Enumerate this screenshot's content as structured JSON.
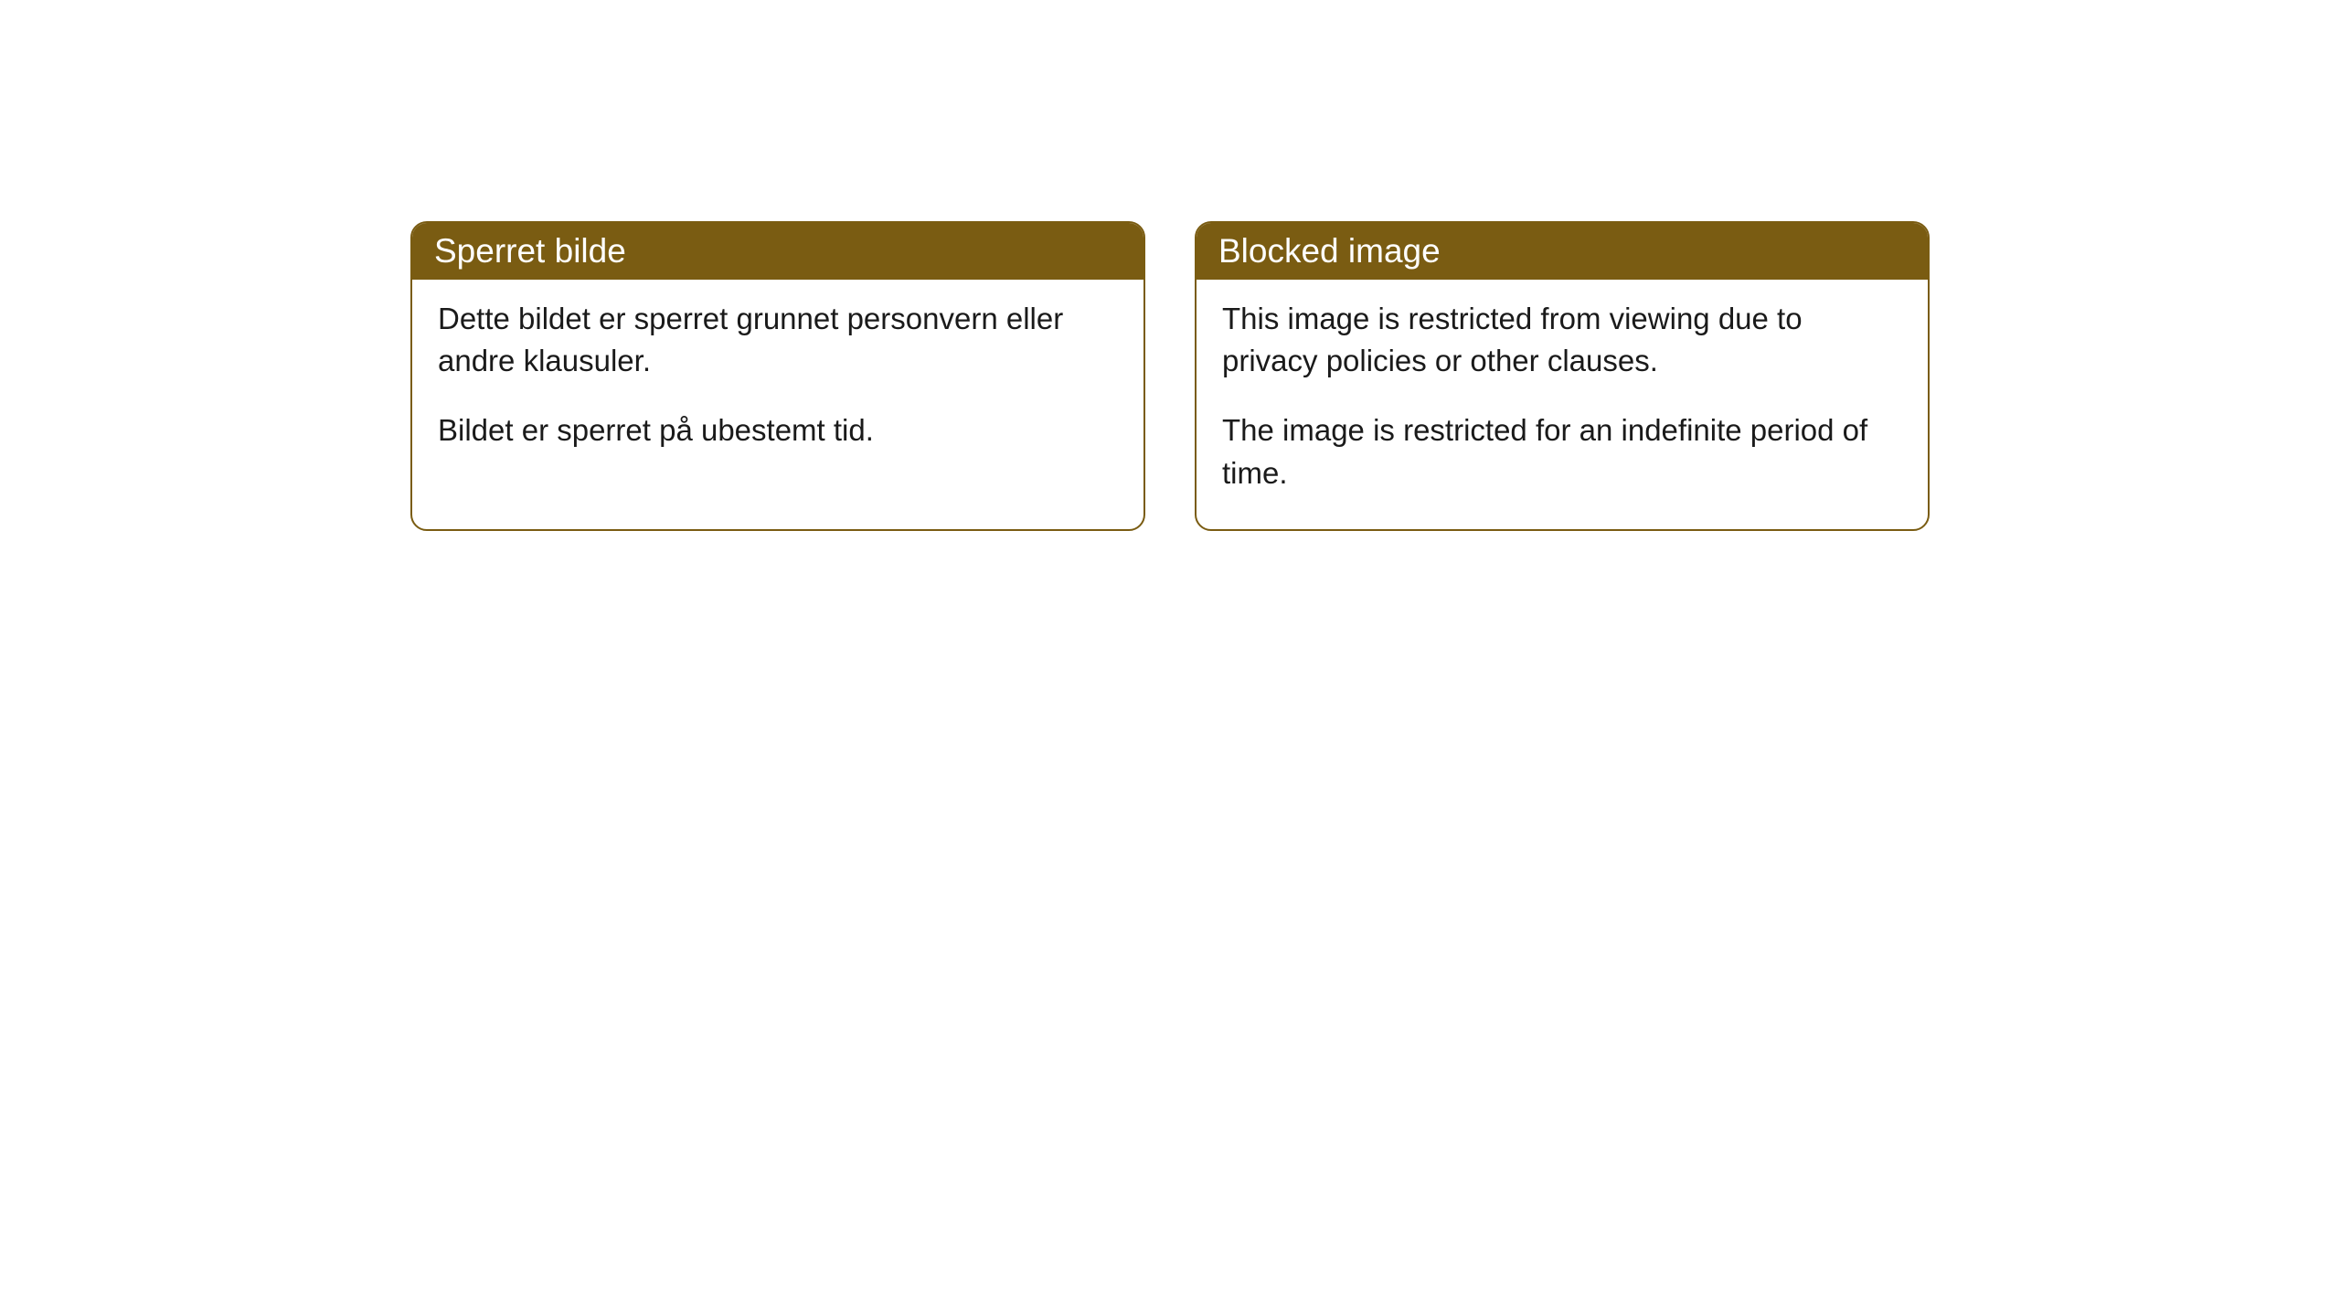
{
  "cards": [
    {
      "title": "Sperret bilde",
      "paragraph1": "Dette bildet er sperret grunnet personvern eller andre klausuler.",
      "paragraph2": "Bildet er sperret på ubestemt tid."
    },
    {
      "title": "Blocked image",
      "paragraph1": "This image is restricted from viewing due to privacy policies or other clauses.",
      "paragraph2": "The image is restricted for an indefinite period of time."
    }
  ],
  "style": {
    "header_bg_color": "#7a5c12",
    "header_text_color": "#ffffff",
    "border_color": "#7a5c12",
    "body_bg_color": "#ffffff",
    "body_text_color": "#1a1a1a",
    "border_radius": 18,
    "title_fontsize": 37,
    "body_fontsize": 33
  }
}
